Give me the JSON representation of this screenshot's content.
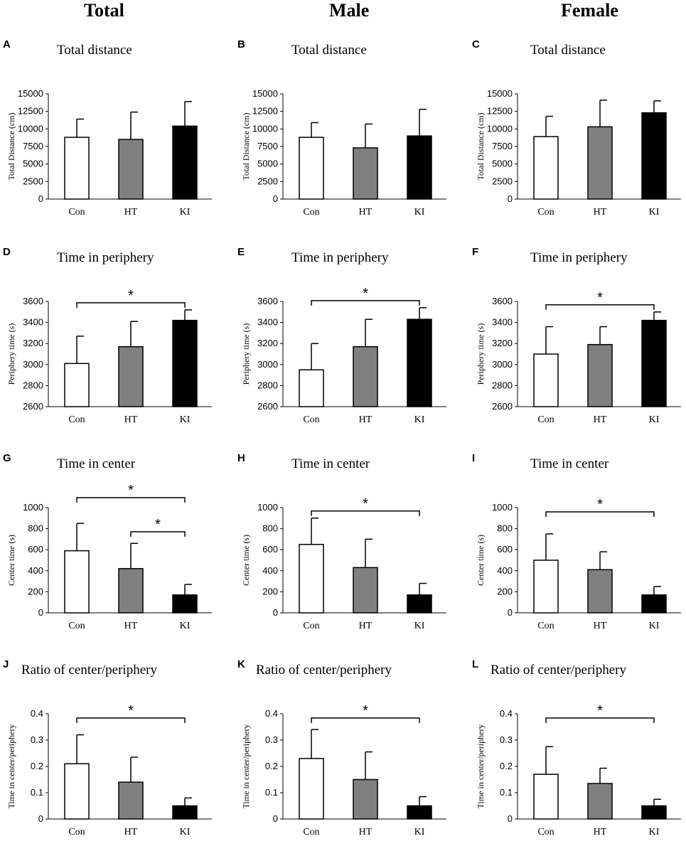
{
  "headers": {
    "total": "Total",
    "male": "Male",
    "female": "Female"
  },
  "colors": {
    "Con": "#ffffff",
    "HT": "#808080",
    "KI": "#000000",
    "stroke": "#000000"
  },
  "chart_data": [
    {
      "id": "A",
      "type": "bar",
      "title": "Total distance",
      "ylabel": "Total Distance (cm)",
      "categories": [
        "Con",
        "HT",
        "KI"
      ],
      "values": [
        8800,
        8500,
        10400
      ],
      "errors": [
        2600,
        3900,
        3500
      ],
      "ylim": [
        0,
        15000
      ],
      "yticks": [
        0,
        2500,
        5000,
        7500,
        10000,
        12500,
        15000
      ],
      "sig": []
    },
    {
      "id": "B",
      "type": "bar",
      "title": "Total distance",
      "ylabel": "Total Distance (cm)",
      "categories": [
        "Con",
        "HT",
        "KI"
      ],
      "values": [
        8800,
        7300,
        9000
      ],
      "errors": [
        2100,
        3400,
        3800
      ],
      "ylim": [
        0,
        15000
      ],
      "yticks": [
        0,
        2500,
        5000,
        7500,
        10000,
        12500,
        15000
      ],
      "sig": []
    },
    {
      "id": "C",
      "type": "bar",
      "title": "Total distance",
      "ylabel": "Total Distance (cm)",
      "categories": [
        "Con",
        "HT",
        "KI"
      ],
      "values": [
        8900,
        10300,
        12300
      ],
      "errors": [
        2900,
        3800,
        1700
      ],
      "ylim": [
        0,
        15000
      ],
      "yticks": [
        0,
        2500,
        5000,
        7500,
        10000,
        12500,
        15000
      ],
      "sig": []
    },
    {
      "id": "D",
      "type": "bar",
      "title": "Time in periphery",
      "ylabel": "Periphery time (s)",
      "categories": [
        "Con",
        "HT",
        "KI"
      ],
      "values": [
        3010,
        3170,
        3420
      ],
      "errors": [
        260,
        240,
        100
      ],
      "ylim": [
        2600,
        3600
      ],
      "yticks": [
        2600,
        2800,
        3000,
        3200,
        3400,
        3600
      ],
      "sig": [
        {
          "from": 0,
          "to": 2,
          "label": "*"
        }
      ]
    },
    {
      "id": "E",
      "type": "bar",
      "title": "Time in periphery",
      "ylabel": "Periphery time (s)",
      "categories": [
        "Con",
        "HT",
        "KI"
      ],
      "values": [
        2950,
        3170,
        3430
      ],
      "errors": [
        250,
        260,
        110
      ],
      "ylim": [
        2600,
        3600
      ],
      "yticks": [
        2600,
        2800,
        3000,
        3200,
        3400,
        3600
      ],
      "sig": [
        {
          "from": 0,
          "to": 2,
          "label": "*"
        }
      ]
    },
    {
      "id": "F",
      "type": "bar",
      "title": "Time in periphery",
      "ylabel": "Periphery time (s)",
      "categories": [
        "Con",
        "HT",
        "KI"
      ],
      "values": [
        3100,
        3190,
        3420
      ],
      "errors": [
        260,
        170,
        80
      ],
      "ylim": [
        2600,
        3600
      ],
      "yticks": [
        2600,
        2800,
        3000,
        3200,
        3400,
        3600
      ],
      "sig": [
        {
          "from": 0,
          "to": 2,
          "label": "*"
        }
      ]
    },
    {
      "id": "G",
      "type": "bar",
      "title": "Time in center",
      "ylabel": "Center time (s)",
      "categories": [
        "Con",
        "HT",
        "KI"
      ],
      "values": [
        590,
        420,
        170
      ],
      "errors": [
        260,
        240,
        100
      ],
      "ylim": [
        0,
        1000
      ],
      "yticks": [
        0,
        200,
        400,
        600,
        800,
        1000
      ],
      "sig": [
        {
          "from": 0,
          "to": 2,
          "label": "*"
        },
        {
          "from": 1,
          "to": 2,
          "label": "*"
        }
      ]
    },
    {
      "id": "H",
      "type": "bar",
      "title": "Time in center",
      "ylabel": "Center time (s)",
      "categories": [
        "Con",
        "HT",
        "KI"
      ],
      "values": [
        650,
        430,
        170
      ],
      "errors": [
        250,
        270,
        110
      ],
      "ylim": [
        0,
        1000
      ],
      "yticks": [
        0,
        200,
        400,
        600,
        800,
        1000
      ],
      "sig": [
        {
          "from": 0,
          "to": 2,
          "label": "*"
        }
      ]
    },
    {
      "id": "I",
      "type": "bar",
      "title": "Time in center",
      "ylabel": "Center time (s)",
      "categories": [
        "Con",
        "HT",
        "KI"
      ],
      "values": [
        500,
        410,
        170
      ],
      "errors": [
        250,
        170,
        80
      ],
      "ylim": [
        0,
        1000
      ],
      "yticks": [
        0,
        200,
        400,
        600,
        800,
        1000
      ],
      "sig": [
        {
          "from": 0,
          "to": 2,
          "label": "*"
        }
      ]
    },
    {
      "id": "J",
      "type": "bar",
      "title": "Ratio of center/periphery",
      "ylabel": "Time in center/periphery",
      "categories": [
        "Con",
        "HT",
        "KI"
      ],
      "values": [
        0.21,
        0.14,
        0.05
      ],
      "errors": [
        0.11,
        0.095,
        0.03
      ],
      "ylim": [
        0,
        0.4
      ],
      "yticks": [
        0,
        0.1,
        0.2,
        0.3,
        0.4
      ],
      "sig": [
        {
          "from": 0,
          "to": 2,
          "label": "*"
        }
      ]
    },
    {
      "id": "K",
      "type": "bar",
      "title": "Ratio of center/periphery",
      "ylabel": "Time in center/periphery",
      "categories": [
        "Con",
        "HT",
        "KI"
      ],
      "values": [
        0.23,
        0.15,
        0.05
      ],
      "errors": [
        0.11,
        0.105,
        0.035
      ],
      "ylim": [
        0,
        0.4
      ],
      "yticks": [
        0,
        0.1,
        0.2,
        0.3,
        0.4
      ],
      "sig": [
        {
          "from": 0,
          "to": 2,
          "label": "*"
        }
      ]
    },
    {
      "id": "L",
      "type": "bar",
      "title": "Ratio of center/periphery",
      "ylabel": "Time in center/periphery",
      "categories": [
        "Con",
        "HT",
        "KI"
      ],
      "values": [
        0.17,
        0.135,
        0.05
      ],
      "errors": [
        0.105,
        0.058,
        0.025
      ],
      "ylim": [
        0,
        0.4
      ],
      "yticks": [
        0,
        0.1,
        0.2,
        0.3,
        0.4
      ],
      "sig": [
        {
          "from": 0,
          "to": 2,
          "label": "*"
        }
      ]
    }
  ]
}
